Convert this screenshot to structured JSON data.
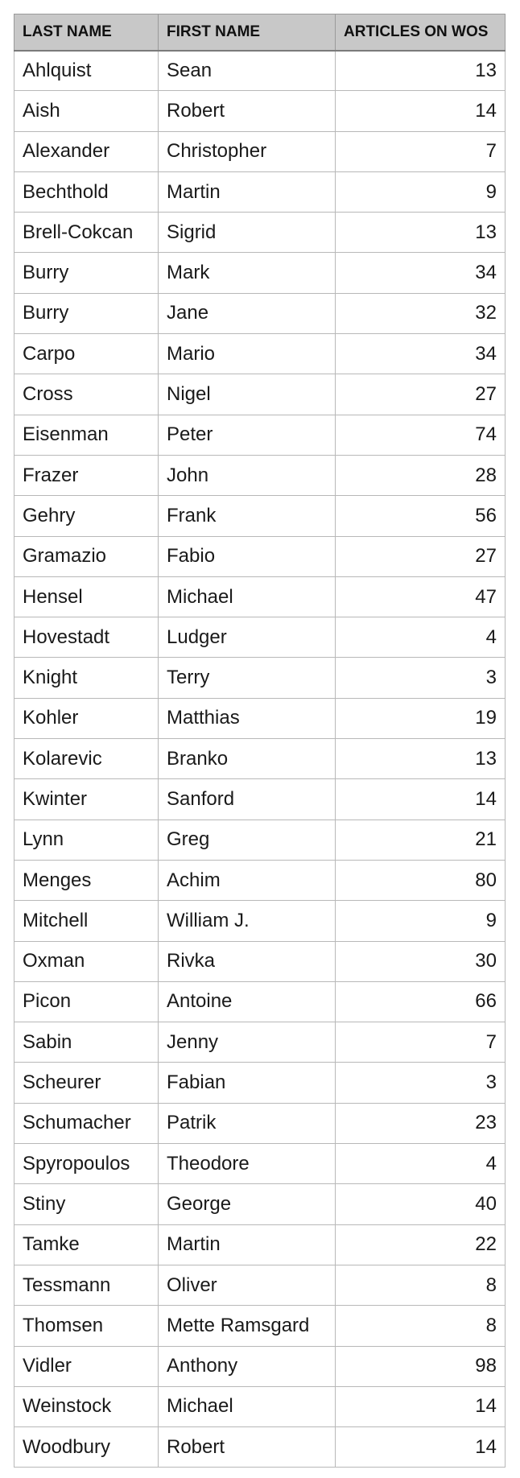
{
  "table": {
    "headers": [
      "LAST NAME",
      "FIRST NAME",
      "ARTICLES ON WOS"
    ],
    "rows": [
      [
        "Ahlquist",
        "Sean",
        "13"
      ],
      [
        "Aish",
        "Robert",
        "14"
      ],
      [
        "Alexander",
        "Christopher",
        "7"
      ],
      [
        "Bechthold",
        "Martin",
        "9"
      ],
      [
        "Brell-Cokcan",
        "Sigrid",
        "13"
      ],
      [
        "Burry",
        "Mark",
        "34"
      ],
      [
        "Burry",
        "Jane",
        "32"
      ],
      [
        "Carpo",
        "Mario",
        "34"
      ],
      [
        "Cross",
        "Nigel",
        "27"
      ],
      [
        "Eisenman",
        "Peter",
        "74"
      ],
      [
        "Frazer",
        "John",
        "28"
      ],
      [
        "Gehry",
        "Frank",
        "56"
      ],
      [
        "Gramazio",
        "Fabio",
        "27"
      ],
      [
        "Hensel",
        "Michael",
        "47"
      ],
      [
        "Hovestadt",
        "Ludger",
        "4"
      ],
      [
        "Knight",
        "Terry",
        "3"
      ],
      [
        "Kohler",
        "Matthias",
        "19"
      ],
      [
        "Kolarevic",
        "Branko",
        "13"
      ],
      [
        "Kwinter",
        "Sanford",
        "14"
      ],
      [
        "Lynn",
        "Greg",
        "21"
      ],
      [
        "Menges",
        "Achim",
        "80"
      ],
      [
        "Mitchell",
        "William J.",
        "9"
      ],
      [
        "Oxman",
        "Rivka",
        "30"
      ],
      [
        "Picon",
        "Antoine",
        "66"
      ],
      [
        "Sabin",
        "Jenny",
        "7"
      ],
      [
        "Scheurer",
        "Fabian",
        "3"
      ],
      [
        "Schumacher",
        "Patrik",
        "23"
      ],
      [
        "Spyropoulos",
        "Theodore",
        "4"
      ],
      [
        "Stiny",
        "George",
        "40"
      ],
      [
        "Tamke",
        "Martin",
        "22"
      ],
      [
        "Tessmann",
        "Oliver",
        "8"
      ],
      [
        "Thomsen",
        "Mette Ramsgard",
        "8"
      ],
      [
        "Vidler",
        "Anthony",
        "98"
      ],
      [
        "Weinstock",
        "Michael",
        "14"
      ],
      [
        "Woodbury",
        "Robert",
        "14"
      ]
    ]
  }
}
